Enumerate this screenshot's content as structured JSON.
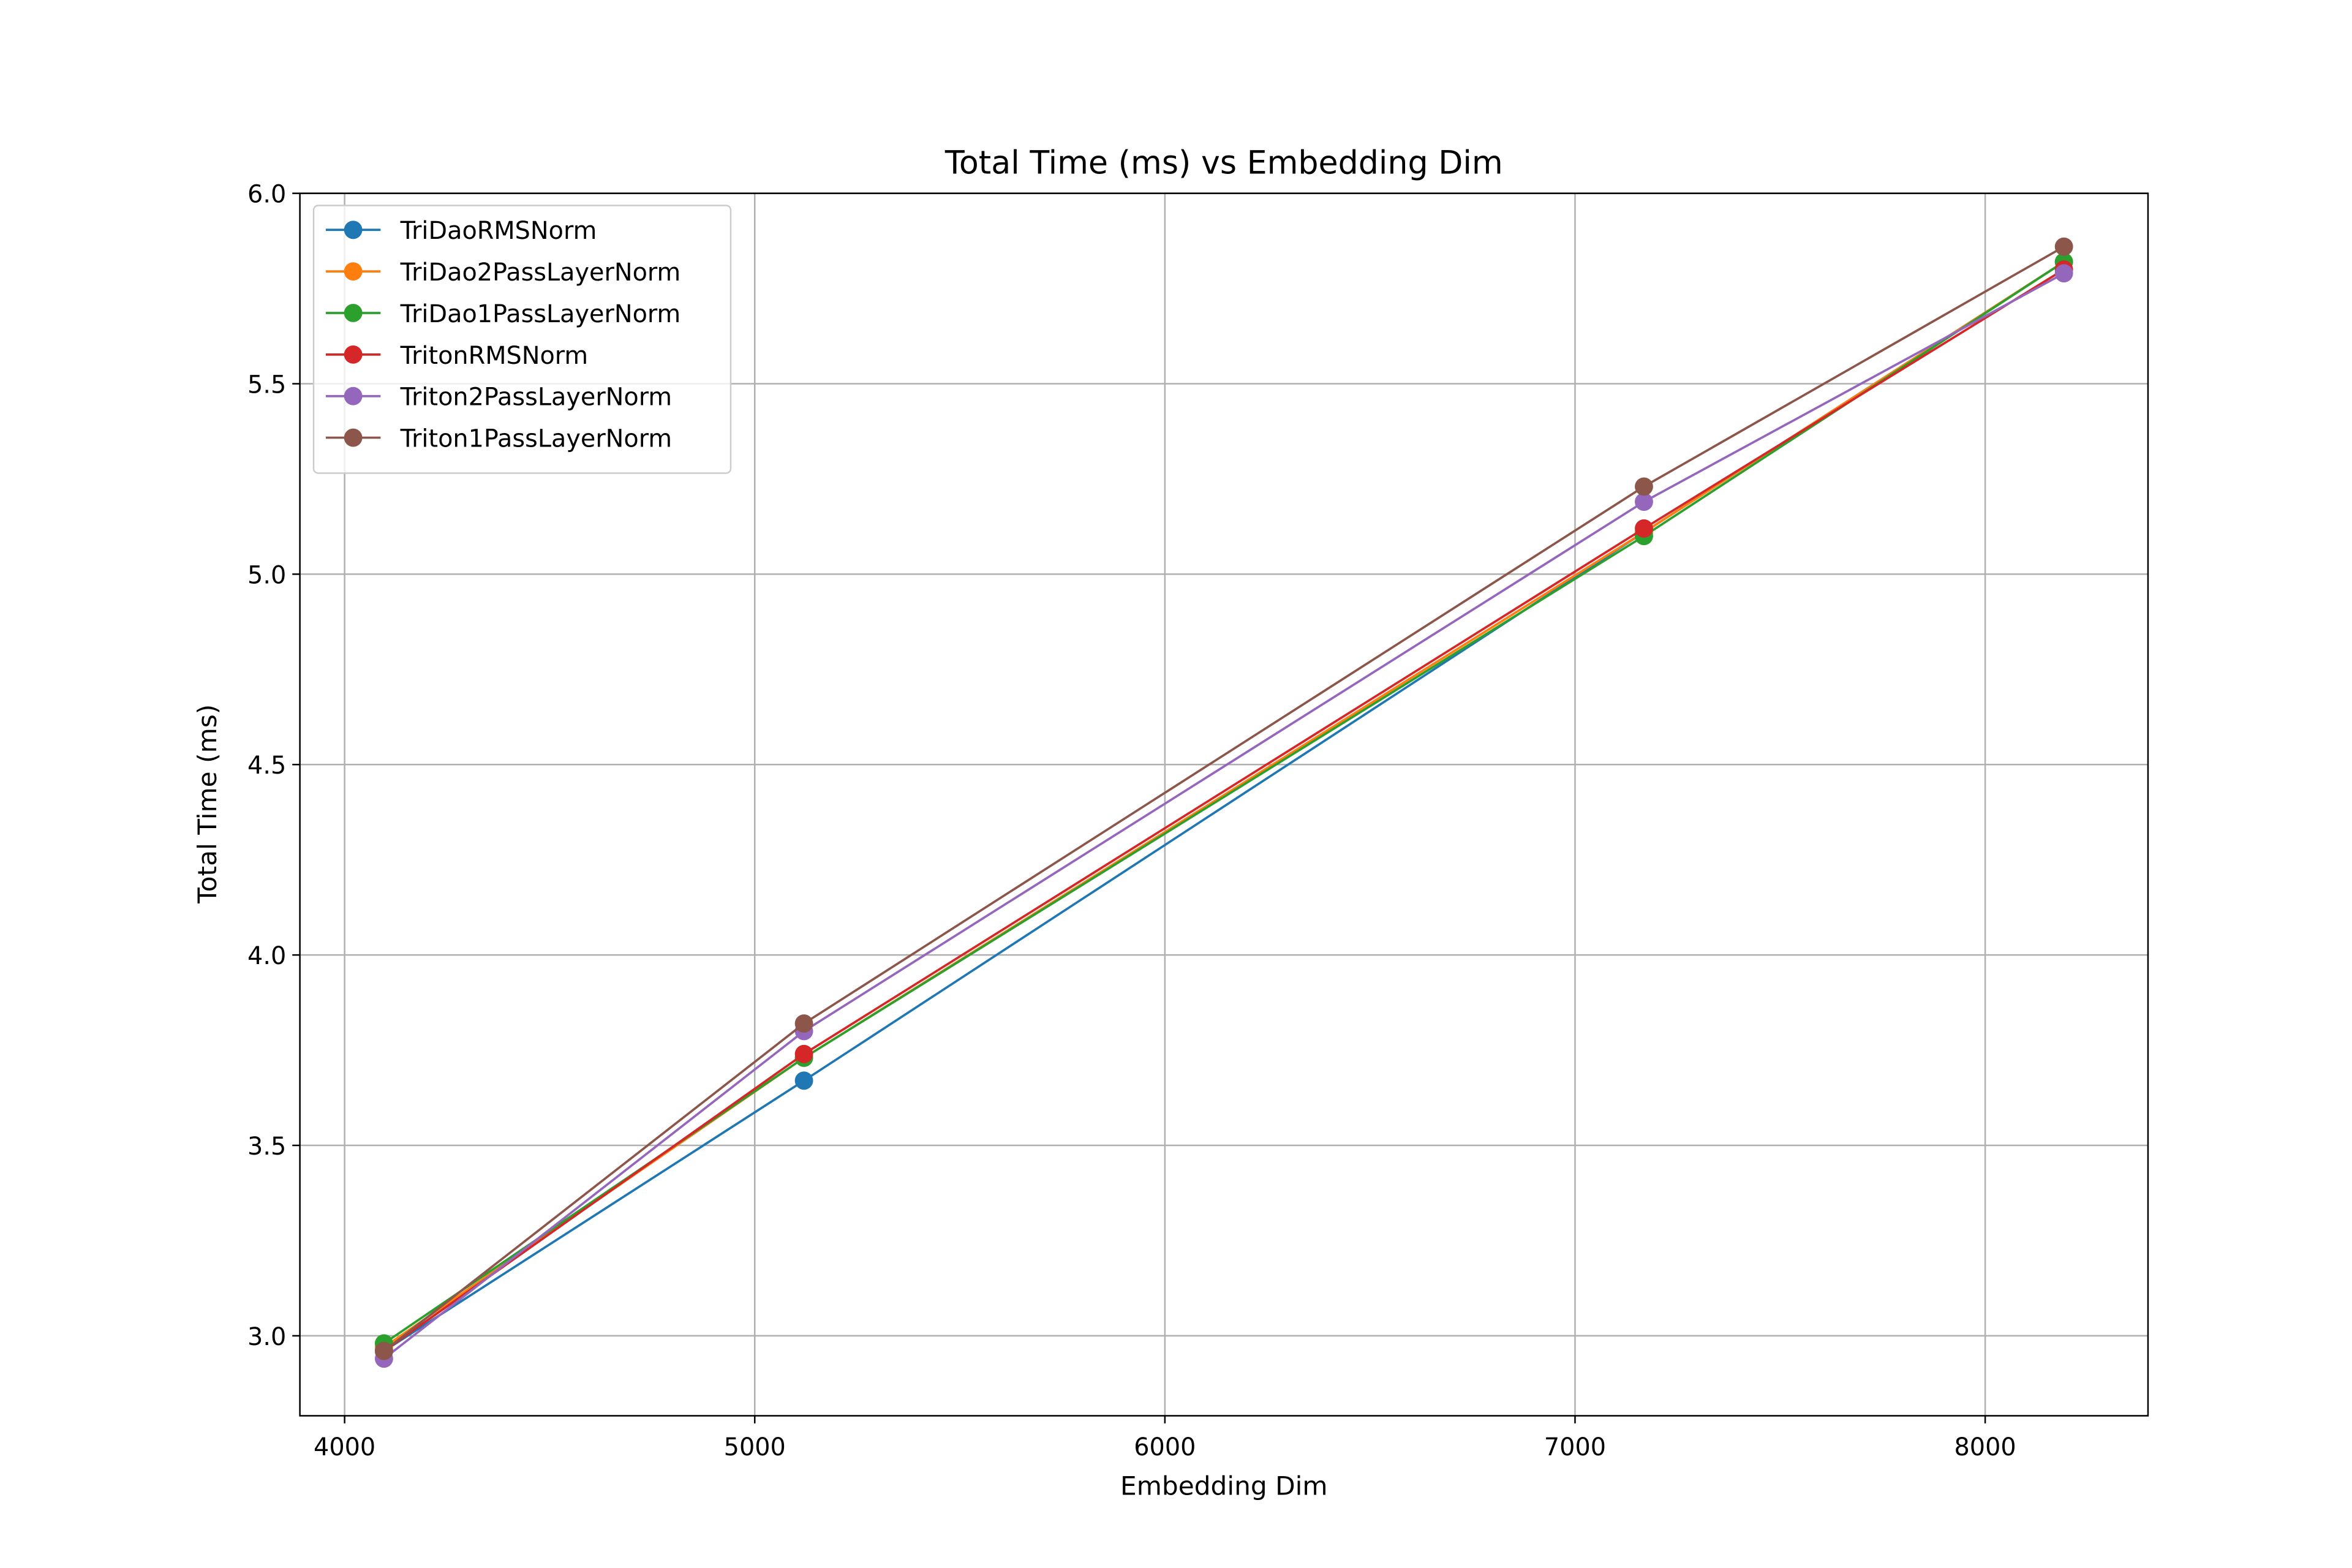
{
  "chart_data": {
    "type": "line",
    "title": "Total Time (ms) vs Embedding Dim",
    "xlabel": "Embedding Dim",
    "ylabel": "Total Time (ms)",
    "x": [
      4096,
      5120,
      7168,
      8192
    ],
    "series": [
      {
        "name": "TriDaoRMSNorm",
        "color": "#1f77b4",
        "values": [
          2.96,
          3.67,
          5.11,
          5.82
        ]
      },
      {
        "name": "TriDao2PassLayerNorm",
        "color": "#ff7f0e",
        "values": [
          2.97,
          3.73,
          5.11,
          5.82
        ]
      },
      {
        "name": "TriDao1PassLayerNorm",
        "color": "#2ca02c",
        "values": [
          2.98,
          3.73,
          5.1,
          5.82
        ]
      },
      {
        "name": "TritonRMSNorm",
        "color": "#d62728",
        "values": [
          2.96,
          3.74,
          5.12,
          5.8
        ]
      },
      {
        "name": "Triton2PassLayerNorm",
        "color": "#9467bd",
        "values": [
          2.94,
          3.8,
          5.19,
          5.79
        ]
      },
      {
        "name": "Triton1PassLayerNorm",
        "color": "#8c564b",
        "values": [
          2.96,
          3.82,
          5.23,
          5.86
        ]
      }
    ],
    "xlim": [
      3891,
      8397
    ],
    "ylim": [
      2.79,
      6.0
    ],
    "xticks": [
      4000,
      5000,
      6000,
      7000,
      8000
    ],
    "yticks": [
      {
        "value": 3.0,
        "label": "3.0"
      },
      3.5,
      {
        "value": 4.0,
        "label": "4.0"
      },
      4.5,
      {
        "value": 5.0,
        "label": "5.0"
      },
      5.5,
      {
        "value": 6.0,
        "label": "6.0"
      }
    ],
    "grid": true,
    "legend": "upper-left"
  }
}
